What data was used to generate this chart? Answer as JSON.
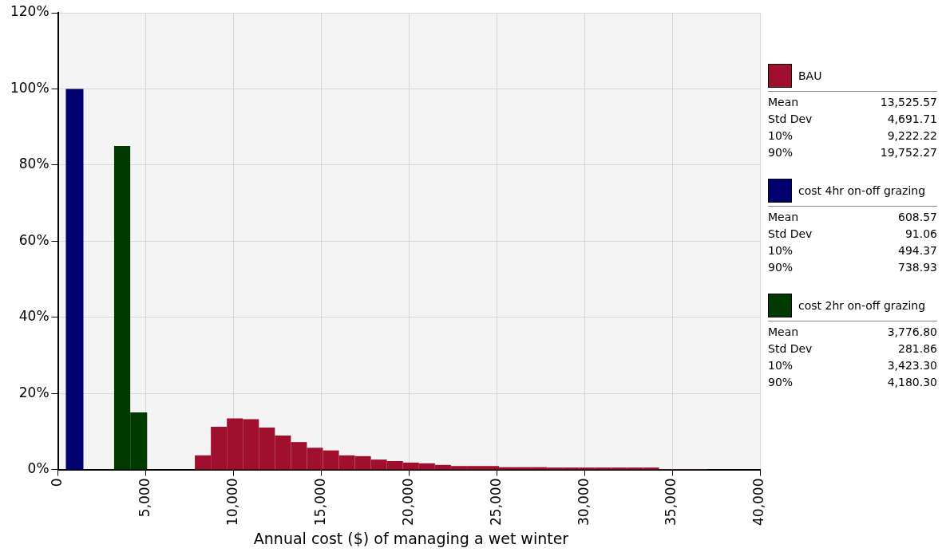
{
  "chart_data": {
    "type": "histogram",
    "xlabel": "Annual cost ($) of managing a wet winter",
    "xlim": [
      0,
      40000
    ],
    "xticks": [
      {
        "value": 0,
        "label": "0"
      },
      {
        "value": 5000,
        "label": "5,000"
      },
      {
        "value": 10000,
        "label": "10,000"
      },
      {
        "value": 15000,
        "label": "15,000"
      },
      {
        "value": 20000,
        "label": "20,000"
      },
      {
        "value": 25000,
        "label": "25,000"
      },
      {
        "value": 30000,
        "label": "30,000"
      },
      {
        "value": 35000,
        "label": "35,000"
      },
      {
        "value": 40000,
        "label": "40,000"
      }
    ],
    "ylim": [
      0,
      120
    ],
    "yticks": [
      {
        "value": 0,
        "label": "0%"
      },
      {
        "value": 20,
        "label": "20%"
      },
      {
        "value": 40,
        "label": "40%"
      },
      {
        "value": 60,
        "label": "60%"
      },
      {
        "value": 80,
        "label": "80%"
      },
      {
        "value": 100,
        "label": "100%"
      },
      {
        "value": 120,
        "label": "120%"
      }
    ],
    "grid": true,
    "legend": "right",
    "bins": [
      450,
      1450,
      3200,
      4120,
      5080,
      7800,
      8712,
      9624,
      10536,
      11448,
      12360,
      13272,
      14184,
      15096,
      16008,
      16920,
      17832,
      18744,
      19656,
      20568,
      21480,
      22392,
      23304,
      24216,
      25128,
      26040,
      26952,
      27864,
      28776,
      29688,
      30600,
      31512,
      32424,
      33336,
      34248,
      35160,
      36072,
      36984
    ],
    "series": [
      {
        "name": "BAU",
        "color": "#a0102e",
        "values": [
          null,
          null,
          null,
          null,
          null,
          3.7,
          11.2,
          13.4,
          13.2,
          11.0,
          8.9,
          7.2,
          5.7,
          5.0,
          3.7,
          3.5,
          2.6,
          2.2,
          1.8,
          1.6,
          1.2,
          0.9,
          0.9,
          0.9,
          0.6,
          0.6,
          0.6,
          0.5,
          0.5,
          0.5,
          0.5,
          0.5,
          0.5,
          0.5,
          0.1,
          0.1,
          0.1
        ]
      },
      {
        "name": "cost 4hr on-off grazing",
        "color": "#00006e",
        "values": [
          100,
          null,
          null,
          null,
          null,
          null,
          null,
          null,
          null,
          null,
          null,
          null,
          null,
          null,
          null,
          null,
          null,
          null,
          null,
          null,
          null,
          null,
          null,
          null,
          null,
          null,
          null,
          null,
          null,
          null,
          null,
          null,
          null,
          null,
          null,
          null,
          null
        ]
      },
      {
        "name": "cost 2hr on-off grazing",
        "color": "#003a00",
        "values": [
          null,
          null,
          85,
          15,
          null,
          null,
          null,
          null,
          null,
          null,
          null,
          null,
          null,
          null,
          null,
          null,
          null,
          null,
          null,
          null,
          null,
          null,
          null,
          null,
          null,
          null,
          null,
          null,
          null,
          null,
          null,
          null,
          null,
          null,
          null,
          null,
          null
        ]
      }
    ],
    "annotations": [
      "Mean",
      "13,525.57",
      "Std Dev",
      "4,691.71",
      "10%",
      "9,222.22",
      "90%",
      "19,752.27",
      "Mean",
      "608.57",
      "Std Dev",
      "91.06",
      "10%",
      "494.37",
      "90%",
      "738.93",
      "Mean",
      "3,776.80",
      "Std Dev",
      "281.86",
      "10%",
      "3,423.30",
      "90%",
      "4,180.30"
    ]
  }
}
